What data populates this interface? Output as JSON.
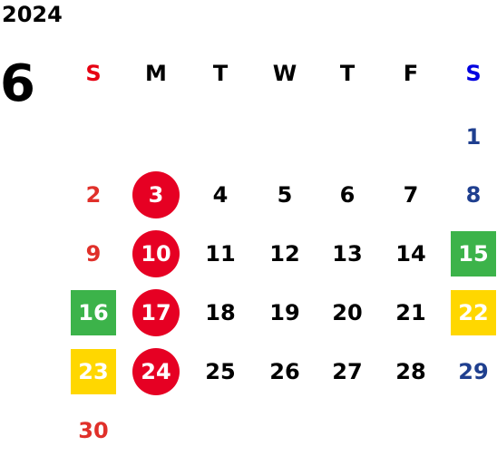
{
  "calendar": {
    "year": "2024",
    "month": "6",
    "weekdays": [
      {
        "label": "S",
        "color": "#e60012"
      },
      {
        "label": "M",
        "color": "#000000"
      },
      {
        "label": "T",
        "color": "#000000"
      },
      {
        "label": "W",
        "color": "#000000"
      },
      {
        "label": "T",
        "color": "#000000"
      },
      {
        "label": "F",
        "color": "#000000"
      },
      {
        "label": "S",
        "color": "#0000e0"
      }
    ],
    "weeks": [
      [
        null,
        null,
        null,
        null,
        null,
        null,
        {
          "day": "1",
          "color": "#1f3f8f"
        }
      ],
      [
        {
          "day": "2",
          "color": "#e0302a"
        },
        {
          "day": "3",
          "color": "#ffffff",
          "bg": "#e60023",
          "shape": "circle"
        },
        {
          "day": "4"
        },
        {
          "day": "5"
        },
        {
          "day": "6"
        },
        {
          "day": "7"
        },
        {
          "day": "8",
          "color": "#1f3f8f"
        }
      ],
      [
        {
          "day": "9",
          "color": "#e0302a"
        },
        {
          "day": "10",
          "color": "#ffffff",
          "bg": "#e60023",
          "shape": "circle"
        },
        {
          "day": "11"
        },
        {
          "day": "12"
        },
        {
          "day": "13"
        },
        {
          "day": "14"
        },
        {
          "day": "15",
          "color": "#ffffff",
          "bg": "#3cb34a",
          "shape": "square"
        }
      ],
      [
        {
          "day": "16",
          "color": "#ffffff",
          "bg": "#3cb34a",
          "shape": "square"
        },
        {
          "day": "17",
          "color": "#ffffff",
          "bg": "#e60023",
          "shape": "circle"
        },
        {
          "day": "18"
        },
        {
          "day": "19"
        },
        {
          "day": "20"
        },
        {
          "day": "21"
        },
        {
          "day": "22",
          "color": "#ffffff",
          "bg": "#ffd700",
          "shape": "square"
        }
      ],
      [
        {
          "day": "23",
          "color": "#ffffff",
          "bg": "#ffd700",
          "shape": "square"
        },
        {
          "day": "24",
          "color": "#ffffff",
          "bg": "#e60023",
          "shape": "circle"
        },
        {
          "day": "25"
        },
        {
          "day": "26"
        },
        {
          "day": "27"
        },
        {
          "day": "28"
        },
        {
          "day": "29",
          "color": "#1f3f8f"
        }
      ],
      [
        {
          "day": "30",
          "color": "#e0302a"
        },
        null,
        null,
        null,
        null,
        null,
        null
      ]
    ]
  }
}
